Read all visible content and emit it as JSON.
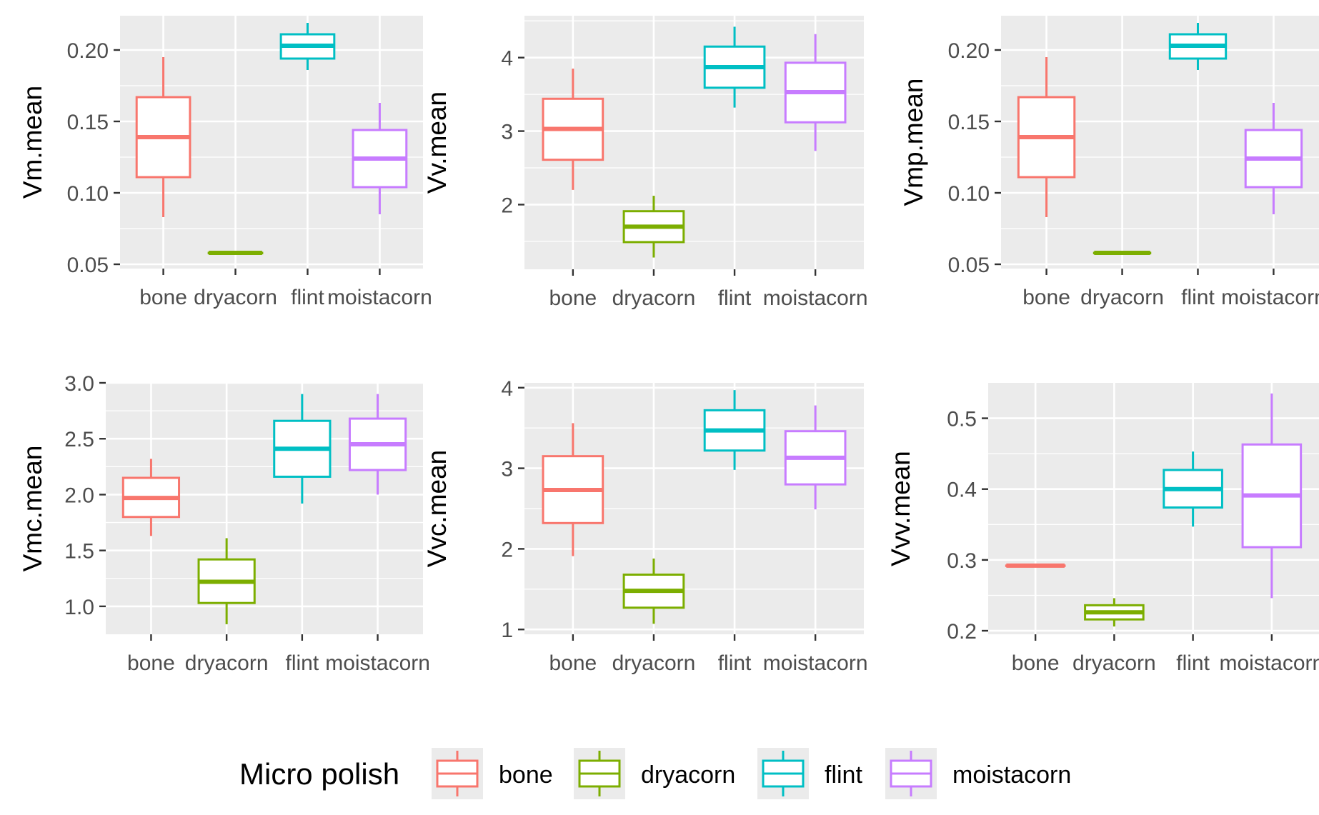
{
  "colors": {
    "bone": "#F8766D",
    "dryacorn": "#7CAE00",
    "flint": "#00BFC4",
    "moistacorn": "#C77CFF",
    "panel_bg": "#EBEBEB",
    "grid": "#FFFFFF",
    "tick_text": "#4D4D4D"
  },
  "legend": {
    "title": "Micro polish",
    "position": "bottom",
    "items": [
      {
        "label": "bone",
        "color": "#F8766D"
      },
      {
        "label": "dryacorn",
        "color": "#7CAE00"
      },
      {
        "label": "flint",
        "color": "#00BFC4"
      },
      {
        "label": "moistacorn",
        "color": "#C77CFF"
      }
    ]
  },
  "chart_data": [
    {
      "type": "boxplot",
      "ylabel": "Vm.mean",
      "categories": [
        "bone",
        "dryacorn",
        "flint",
        "moistacorn"
      ],
      "ylim": [
        0.047,
        0.224
      ],
      "yticks": [
        0.05,
        0.1,
        0.15,
        0.2
      ],
      "ytick_labels": [
        "0.05",
        "0.10",
        "0.15",
        "0.20"
      ],
      "boxes": [
        {
          "category": "bone",
          "min": 0.083,
          "q1": 0.111,
          "median": 0.139,
          "q3": 0.167,
          "max": 0.195
        },
        {
          "category": "dryacorn",
          "min": 0.058,
          "q1": 0.058,
          "median": 0.058,
          "q3": 0.058,
          "max": 0.058
        },
        {
          "category": "flint",
          "min": 0.186,
          "q1": 0.194,
          "median": 0.203,
          "q3": 0.211,
          "max": 0.219
        },
        {
          "category": "moistacorn",
          "min": 0.085,
          "q1": 0.104,
          "median": 0.124,
          "q3": 0.144,
          "max": 0.163
        }
      ]
    },
    {
      "type": "boxplot",
      "ylabel": "Vv.mean",
      "categories": [
        "bone",
        "dryacorn",
        "flint",
        "moistacorn"
      ],
      "ylim": [
        1.12,
        4.57
      ],
      "yticks": [
        2,
        3,
        4
      ],
      "ytick_labels": [
        "2",
        "3",
        "4"
      ],
      "boxes": [
        {
          "category": "bone",
          "min": 2.2,
          "q1": 2.61,
          "median": 3.03,
          "q3": 3.44,
          "max": 3.85
        },
        {
          "category": "dryacorn",
          "min": 1.28,
          "q1": 1.49,
          "median": 1.7,
          "q3": 1.91,
          "max": 2.12
        },
        {
          "category": "flint",
          "min": 3.32,
          "q1": 3.59,
          "median": 3.87,
          "q3": 4.15,
          "max": 4.42
        },
        {
          "category": "moistacorn",
          "min": 2.73,
          "q1": 3.12,
          "median": 3.53,
          "q3": 3.93,
          "max": 4.32
        }
      ]
    },
    {
      "type": "boxplot",
      "ylabel": "Vmp.mean",
      "categories": [
        "bone",
        "dryacorn",
        "flint",
        "moistacorn"
      ],
      "ylim": [
        0.047,
        0.224
      ],
      "yticks": [
        0.05,
        0.1,
        0.15,
        0.2
      ],
      "ytick_labels": [
        "0.05",
        "0.10",
        "0.15",
        "0.20"
      ],
      "boxes": [
        {
          "category": "bone",
          "min": 0.083,
          "q1": 0.111,
          "median": 0.139,
          "q3": 0.167,
          "max": 0.195
        },
        {
          "category": "dryacorn",
          "min": 0.058,
          "q1": 0.058,
          "median": 0.058,
          "q3": 0.058,
          "max": 0.058
        },
        {
          "category": "flint",
          "min": 0.186,
          "q1": 0.194,
          "median": 0.203,
          "q3": 0.211,
          "max": 0.219
        },
        {
          "category": "moistacorn",
          "min": 0.085,
          "q1": 0.104,
          "median": 0.124,
          "q3": 0.144,
          "max": 0.163
        }
      ]
    },
    {
      "type": "boxplot",
      "ylabel": "Vmc.mean",
      "categories": [
        "bone",
        "dryacorn",
        "flint",
        "moistacorn"
      ],
      "ylim": [
        0.75,
        3.0
      ],
      "yticks": [
        1.0,
        1.5,
        2.0,
        2.5,
        3.0
      ],
      "ytick_labels": [
        "1.0",
        "1.5",
        "2.0",
        "2.5",
        "3.0"
      ],
      "boxes": [
        {
          "category": "bone",
          "min": 1.63,
          "q1": 1.8,
          "median": 1.97,
          "q3": 2.15,
          "max": 2.32
        },
        {
          "category": "dryacorn",
          "min": 0.84,
          "q1": 1.03,
          "median": 1.22,
          "q3": 1.42,
          "max": 1.61
        },
        {
          "category": "flint",
          "min": 1.92,
          "q1": 2.16,
          "median": 2.41,
          "q3": 2.66,
          "max": 2.9
        },
        {
          "category": "moistacorn",
          "min": 2.0,
          "q1": 2.22,
          "median": 2.45,
          "q3": 2.68,
          "max": 2.9
        }
      ]
    },
    {
      "type": "boxplot",
      "ylabel": "Vvc.mean",
      "categories": [
        "bone",
        "dryacorn",
        "flint",
        "moistacorn"
      ],
      "ylim": [
        0.94,
        4.06
      ],
      "yticks": [
        1,
        2,
        3,
        4
      ],
      "ytick_labels": [
        "1",
        "2",
        "3",
        "4"
      ],
      "boxes": [
        {
          "category": "bone",
          "min": 1.91,
          "q1": 2.32,
          "median": 2.73,
          "q3": 3.15,
          "max": 3.56
        },
        {
          "category": "dryacorn",
          "min": 1.07,
          "q1": 1.27,
          "median": 1.48,
          "q3": 1.68,
          "max": 1.88
        },
        {
          "category": "flint",
          "min": 2.98,
          "q1": 3.22,
          "median": 3.47,
          "q3": 3.72,
          "max": 3.97
        },
        {
          "category": "moistacorn",
          "min": 2.49,
          "q1": 2.8,
          "median": 3.13,
          "q3": 3.46,
          "max": 3.78
        }
      ]
    },
    {
      "type": "boxplot",
      "ylabel": "Vvv.mean",
      "categories": [
        "bone",
        "dryacorn",
        "flint",
        "moistacorn"
      ],
      "ylim": [
        0.195,
        0.55
      ],
      "yticks": [
        0.2,
        0.3,
        0.4,
        0.5
      ],
      "ytick_labels": [
        "0.2",
        "0.3",
        "0.4",
        "0.5"
      ],
      "boxes": [
        {
          "category": "bone",
          "min": 0.292,
          "q1": 0.292,
          "median": 0.292,
          "q3": 0.292,
          "max": 0.292
        },
        {
          "category": "dryacorn",
          "min": 0.206,
          "q1": 0.216,
          "median": 0.226,
          "q3": 0.236,
          "max": 0.246
        },
        {
          "category": "flint",
          "min": 0.347,
          "q1": 0.374,
          "median": 0.4,
          "q3": 0.427,
          "max": 0.453
        },
        {
          "category": "moistacorn",
          "min": 0.246,
          "q1": 0.318,
          "median": 0.391,
          "q3": 0.463,
          "max": 0.535
        }
      ]
    }
  ]
}
